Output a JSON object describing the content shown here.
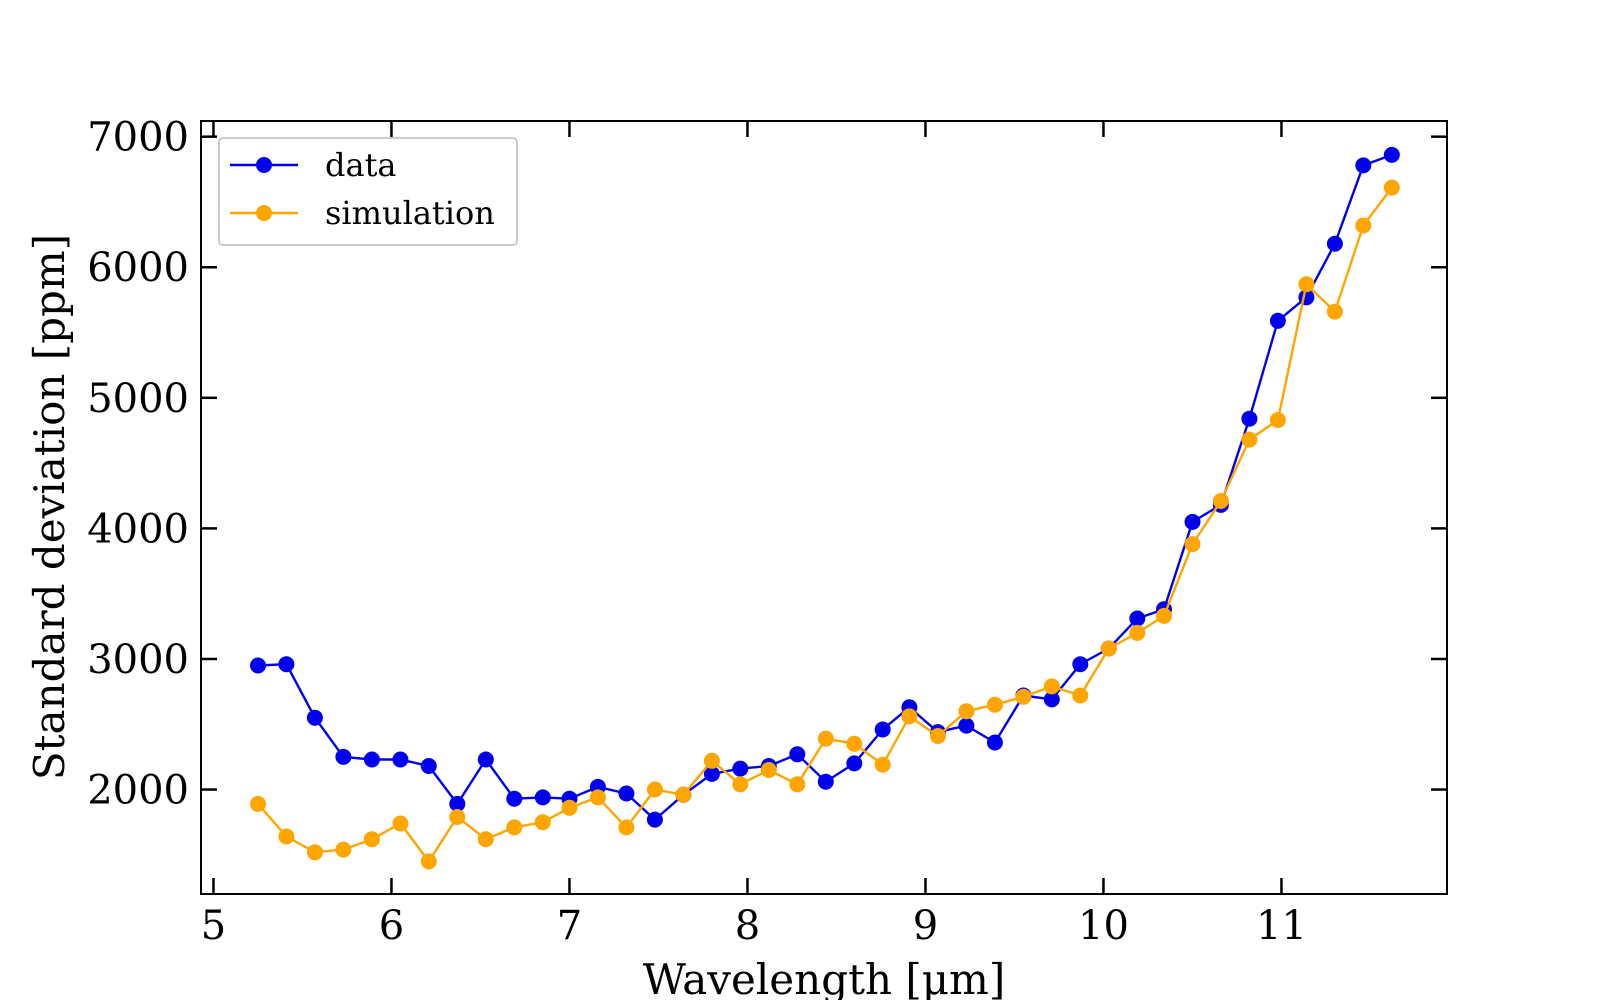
{
  "chart_data": {
    "type": "line",
    "title": "",
    "xlabel": "Wavelength [μm]",
    "ylabel": "Standard deviation [ppm]",
    "xlim": [
      4.93,
      11.93
    ],
    "ylim": [
      1200,
      7120
    ],
    "xticks": [
      5,
      6,
      7,
      8,
      9,
      10,
      11
    ],
    "yticks": [
      2000,
      3000,
      4000,
      5000,
      6000,
      7000
    ],
    "xtick_labels": [
      "5",
      "6",
      "7",
      "8",
      "9",
      "10",
      "11"
    ],
    "ytick_labels": [
      "2000",
      "3000",
      "4000",
      "5000",
      "6000",
      "7000"
    ],
    "grid": false,
    "legend": {
      "position": "top-left",
      "labels": [
        "data",
        "simulation"
      ]
    },
    "x": [
      5.25,
      5.41,
      5.57,
      5.73,
      5.89,
      6.05,
      6.21,
      6.37,
      6.53,
      6.69,
      6.85,
      7.0,
      7.16,
      7.32,
      7.48,
      7.64,
      7.8,
      7.96,
      8.12,
      8.28,
      8.44,
      8.6,
      8.76,
      8.91,
      9.07,
      9.23,
      9.39,
      9.55,
      9.71,
      9.87,
      10.03,
      10.19,
      10.34,
      10.5,
      10.66,
      10.82,
      10.98,
      11.14,
      11.3,
      11.46,
      11.62
    ],
    "series": [
      {
        "name": "data",
        "color": "#0000ee",
        "values": [
          2950,
          2960,
          2550,
          2250,
          2230,
          2230,
          2180,
          1890,
          2230,
          1930,
          1940,
          1930,
          2020,
          1970,
          1770,
          1960,
          2120,
          2160,
          2180,
          2270,
          2060,
          2200,
          2460,
          2630,
          2440,
          2490,
          2360,
          2720,
          2690,
          2960,
          3080,
          3310,
          3380,
          4050,
          4180,
          4840,
          5590,
          5770,
          6180,
          6780,
          6860
        ]
      },
      {
        "name": "simulation",
        "color": "#ffa500",
        "values": [
          1890,
          1640,
          1520,
          1540,
          1620,
          1740,
          1450,
          1790,
          1620,
          1710,
          1750,
          1860,
          1940,
          1710,
          2000,
          1960,
          2220,
          2040,
          2150,
          2040,
          2390,
          2350,
          2190,
          2560,
          2410,
          2600,
          2650,
          2710,
          2790,
          2720,
          3080,
          3200,
          3330,
          3880,
          4210,
          4680,
          4830,
          5870,
          5660,
          6320,
          6610
        ]
      }
    ]
  }
}
